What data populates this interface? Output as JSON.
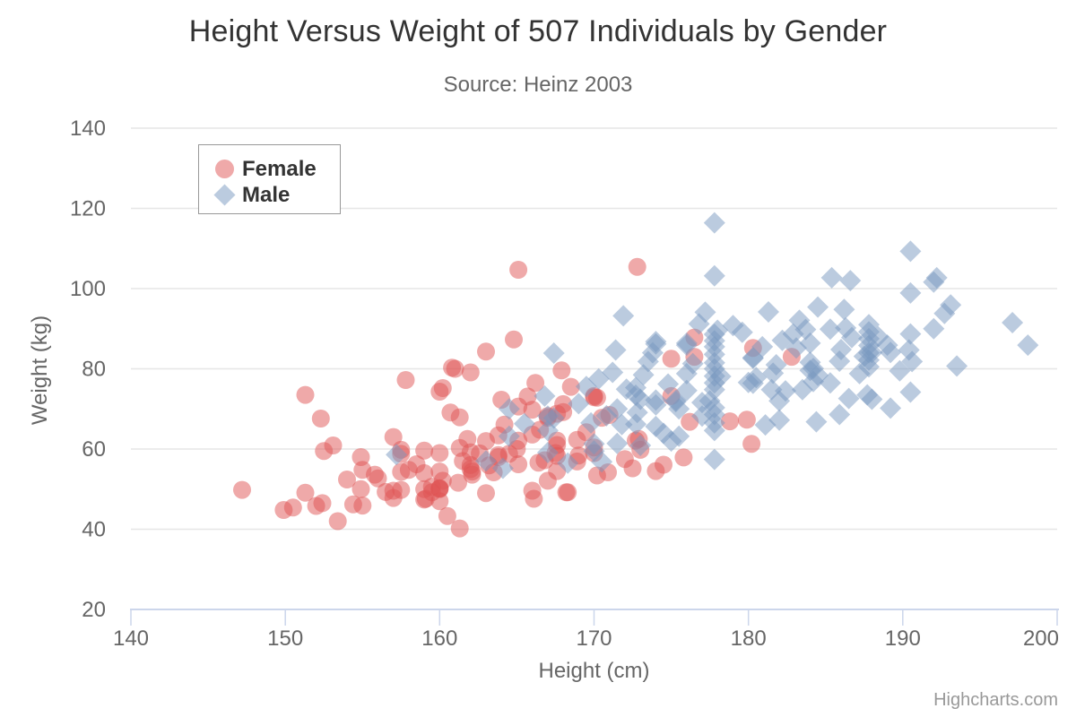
{
  "credit": "Highcharts.com",
  "colors": {
    "title": "#333333",
    "subtitle": "#666666",
    "tick_label": "#666666",
    "axis_title": "#666666",
    "grid_line": "#e6e6e6",
    "axis_line": "#ccd6eb",
    "legend_border": "#999999",
    "legend_text": "#333333",
    "credit": "#999999",
    "female": "rgba(223,83,83,0.5)",
    "male": "rgba(119,152,191,0.5)"
  },
  "chart_data": {
    "type": "scatter",
    "title": "Height Versus Weight of 507 Individuals by Gender",
    "subtitle": "Source: Heinz 2003",
    "xlabel": "Height (cm)",
    "ylabel": "Weight (kg)",
    "xlim": [
      140,
      200
    ],
    "ylim": [
      20,
      140
    ],
    "x_ticks": [
      140,
      150,
      160,
      170,
      180,
      190,
      200
    ],
    "y_ticks": [
      20,
      40,
      60,
      80,
      100,
      120,
      140
    ],
    "grid": "horizontal-only",
    "legend": {
      "position": "top-left-inside",
      "items": [
        {
          "label": "Female",
          "marker": "circle",
          "color": "rgba(223,83,83,0.5)"
        },
        {
          "label": "Male",
          "marker": "diamond",
          "color": "rgba(119,152,191,0.5)"
        }
      ]
    },
    "series": [
      {
        "name": "Female",
        "marker": "circle",
        "color": "rgba(223,83,83,0.5)",
        "data": [
          [
            161.2,
            51.6
          ],
          [
            167.5,
            59.0
          ],
          [
            159.5,
            49.2
          ],
          [
            157.0,
            63.0
          ],
          [
            155.8,
            53.6
          ],
          [
            170.0,
            59.0
          ],
          [
            159.1,
            47.6
          ],
          [
            166.0,
            69.8
          ],
          [
            176.2,
            66.8
          ],
          [
            160.2,
            75.2
          ],
          [
            172.5,
            55.2
          ],
          [
            170.9,
            54.2
          ],
          [
            172.9,
            62.5
          ],
          [
            153.4,
            42.0
          ],
          [
            160.0,
            50.0
          ],
          [
            147.2,
            49.8
          ],
          [
            168.2,
            49.2
          ],
          [
            175.0,
            73.2
          ],
          [
            157.0,
            47.8
          ],
          [
            167.6,
            68.8
          ],
          [
            159.5,
            50.6
          ],
          [
            175.0,
            82.5
          ],
          [
            166.8,
            57.2
          ],
          [
            176.5,
            87.8
          ],
          [
            170.2,
            72.8
          ],
          [
            174.0,
            54.5
          ],
          [
            173.0,
            59.8
          ],
          [
            179.9,
            67.3
          ],
          [
            170.5,
            67.8
          ],
          [
            160.0,
            47.0
          ],
          [
            154.4,
            46.2
          ],
          [
            162.0,
            55.0
          ],
          [
            176.5,
            83.0
          ],
          [
            160.0,
            54.4
          ],
          [
            152.0,
            45.8
          ],
          [
            162.1,
            53.6
          ],
          [
            170.0,
            73.2
          ],
          [
            160.2,
            52.1
          ],
          [
            161.3,
            67.9
          ],
          [
            166.4,
            56.6
          ],
          [
            168.9,
            62.3
          ],
          [
            163.8,
            58.5
          ],
          [
            167.6,
            54.5
          ],
          [
            160.0,
            50.2
          ],
          [
            161.3,
            60.3
          ],
          [
            167.6,
            58.3
          ],
          [
            165.1,
            56.2
          ],
          [
            160.0,
            50.2
          ],
          [
            170.0,
            72.9
          ],
          [
            157.5,
            59.8
          ],
          [
            167.6,
            61.0
          ],
          [
            160.7,
            69.1
          ],
          [
            163.2,
            55.9
          ],
          [
            152.4,
            46.5
          ],
          [
            157.5,
            54.3
          ],
          [
            168.3,
            49.2
          ],
          [
            180.3,
            85.2
          ],
          [
            157.5,
            49.8
          ],
          [
            155.0,
            45.9
          ],
          [
            165.1,
            70.6
          ],
          [
            165.1,
            62.1
          ],
          [
            154.9,
            58.0
          ],
          [
            162.6,
            58.9
          ],
          [
            160.0,
            59.0
          ],
          [
            168.9,
            56.9
          ],
          [
            163.8,
            63.4
          ],
          [
            167.6,
            62.1
          ],
          [
            154.9,
            50.0
          ],
          [
            161.3,
            40.2
          ],
          [
            170.2,
            53.4
          ],
          [
            149.9,
            44.8
          ],
          [
            157.5,
            58.8
          ],
          [
            163.8,
            58.0
          ],
          [
            172.7,
            62.1
          ],
          [
            155.0,
            54.8
          ],
          [
            156.5,
            49.3
          ],
          [
            164.0,
            72.3
          ],
          [
            160.0,
            74.3
          ],
          [
            163.0,
            62.0
          ],
          [
            165.7,
            73.1
          ],
          [
            161.0,
            80.0
          ],
          [
            162.0,
            79.1
          ],
          [
            166.1,
            47.6
          ],
          [
            168.0,
            69.2
          ],
          [
            166.0,
            49.6
          ],
          [
            167.0,
            68.2
          ],
          [
            156.0,
            52.7
          ],
          [
            162.1,
            54.4
          ],
          [
            159.0,
            59.6
          ],
          [
            157.0,
            49.6
          ],
          [
            158.0,
            54.8
          ],
          [
            159.0,
            50.0
          ],
          [
            162.0,
            59.2
          ],
          [
            159.0,
            47.4
          ],
          [
            163.0,
            49.0
          ],
          [
            162.0,
            56.0
          ],
          [
            169.0,
            58.4
          ],
          [
            167.0,
            67.8
          ],
          [
            159.0,
            54.0
          ],
          [
            165.0,
            60.0
          ],
          [
            170.0,
            60.4
          ],
          [
            166.0,
            63.6
          ],
          [
            168.0,
            71.2
          ],
          [
            154.0,
            52.4
          ],
          [
            167.0,
            52.1
          ],
          [
            165.1,
            104.7
          ],
          [
            172.8,
            105.4
          ],
          [
            151.3,
            73.5
          ],
          [
            157.8,
            77.2
          ],
          [
            152.3,
            67.6
          ],
          [
            151.3,
            49.1
          ],
          [
            150.5,
            45.4
          ],
          [
            152.5,
            59.5
          ],
          [
            153.1,
            60.9
          ],
          [
            160.5,
            43.3
          ],
          [
            182.8,
            83.0
          ],
          [
            180.2,
            61.3
          ],
          [
            178.8,
            66.9
          ],
          [
            161.5,
            57.0
          ],
          [
            163.5,
            54.2
          ],
          [
            164.5,
            58.8
          ],
          [
            158.5,
            56.2
          ],
          [
            161.8,
            62.5
          ],
          [
            164.2,
            66.1
          ],
          [
            166.5,
            64.8
          ],
          [
            169.5,
            64.2
          ],
          [
            171.0,
            68.5
          ],
          [
            172.0,
            57.5
          ],
          [
            174.5,
            56.1
          ],
          [
            175.8,
            57.9
          ],
          [
            168.5,
            75.5
          ],
          [
            166.2,
            76.5
          ],
          [
            163.0,
            84.3
          ],
          [
            160.8,
            80.3
          ],
          [
            164.8,
            87.3
          ],
          [
            167.9,
            79.6
          ]
        ]
      },
      {
        "name": "Male",
        "marker": "diamond",
        "color": "rgba(119,152,191,0.5)",
        "data": [
          [
            174.0,
            65.6
          ],
          [
            175.3,
            71.8
          ],
          [
            193.5,
            80.7
          ],
          [
            186.5,
            72.6
          ],
          [
            187.2,
            78.8
          ],
          [
            181.5,
            74.8
          ],
          [
            184.0,
            86.4
          ],
          [
            184.5,
            78.4
          ],
          [
            175.0,
            62.0
          ],
          [
            184.0,
            81.6
          ],
          [
            180.0,
            76.6
          ],
          [
            177.8,
            83.6
          ],
          [
            192.0,
            90.0
          ],
          [
            176.0,
            74.6
          ],
          [
            174.0,
            71.0
          ],
          [
            184.0,
            79.6
          ],
          [
            192.7,
            93.8
          ],
          [
            171.5,
            70.0
          ],
          [
            173.0,
            72.4
          ],
          [
            176.0,
            85.9
          ],
          [
            176.0,
            78.8
          ],
          [
            180.5,
            77.8
          ],
          [
            172.7,
            66.2
          ],
          [
            176.0,
            86.4
          ],
          [
            173.5,
            81.8
          ],
          [
            178.0,
            89.6
          ],
          [
            180.3,
            82.8
          ],
          [
            180.3,
            76.4
          ],
          [
            164.5,
            63.2
          ],
          [
            173.0,
            60.9
          ],
          [
            183.5,
            74.8
          ],
          [
            175.5,
            70.0
          ],
          [
            188.0,
            72.4
          ],
          [
            189.2,
            84.1
          ],
          [
            172.8,
            69.1
          ],
          [
            170.0,
            59.5
          ],
          [
            182.0,
            67.2
          ],
          [
            170.0,
            61.3
          ],
          [
            177.8,
            68.6
          ],
          [
            184.2,
            80.1
          ],
          [
            186.7,
            87.8
          ],
          [
            171.4,
            84.7
          ],
          [
            172.7,
            73.4
          ],
          [
            175.3,
            72.1
          ],
          [
            180.3,
            82.6
          ],
          [
            182.9,
            88.7
          ],
          [
            188.0,
            84.1
          ],
          [
            177.2,
            94.1
          ],
          [
            172.1,
            74.9
          ],
          [
            167.0,
            59.1
          ],
          [
            169.5,
            75.6
          ],
          [
            174.0,
            86.2
          ],
          [
            172.7,
            75.3
          ],
          [
            182.2,
            87.1
          ],
          [
            164.1,
            55.2
          ],
          [
            163.0,
            57.0
          ],
          [
            171.5,
            61.4
          ],
          [
            184.2,
            76.8
          ],
          [
            174.0,
            86.8
          ],
          [
            174.0,
            72.2
          ],
          [
            177.0,
            71.6
          ],
          [
            186.0,
            84.8
          ],
          [
            167.0,
            68.2
          ],
          [
            171.8,
            66.1
          ],
          [
            182.0,
            72.0
          ],
          [
            167.0,
            64.6
          ],
          [
            177.8,
            74.8
          ],
          [
            164.5,
            70.0
          ],
          [
            192.0,
            101.6
          ],
          [
            175.5,
            63.2
          ],
          [
            171.2,
            79.1
          ],
          [
            181.6,
            78.9
          ],
          [
            167.4,
            67.7
          ],
          [
            181.1,
            66.0
          ],
          [
            177.0,
            68.2
          ],
          [
            174.5,
            63.9
          ],
          [
            177.5,
            72.0
          ],
          [
            170.5,
            56.8
          ],
          [
            182.4,
            74.5
          ],
          [
            177.8,
            116.4
          ],
          [
            177.8,
            103.2
          ],
          [
            190.5,
            109.3
          ],
          [
            192.2,
            102.7
          ],
          [
            190.5,
            98.9
          ],
          [
            193.1,
            95.9
          ],
          [
            197.1,
            91.5
          ],
          [
            198.1,
            85.9
          ],
          [
            185.4,
            102.7
          ],
          [
            186.6,
            102.0
          ],
          [
            184.5,
            95.4
          ],
          [
            183.3,
            92.1
          ],
          [
            186.2,
            94.8
          ],
          [
            190.4,
            84.7
          ],
          [
            189.0,
            85.9
          ],
          [
            190.6,
            81.8
          ],
          [
            190.5,
            74.2
          ],
          [
            190.5,
            88.7
          ],
          [
            185.9,
            68.6
          ],
          [
            184.4,
            66.8
          ],
          [
            187.7,
            73.5
          ],
          [
            189.2,
            70.2
          ],
          [
            167.4,
            83.9
          ],
          [
            171.9,
            93.2
          ],
          [
            177.8,
            64.6
          ],
          [
            177.8,
            66.5
          ],
          [
            177.8,
            70.3
          ],
          [
            177.8,
            76.5
          ],
          [
            177.8,
            78.2
          ],
          [
            177.8,
            80.0
          ],
          [
            177.8,
            81.5
          ],
          [
            177.8,
            85.5
          ],
          [
            177.8,
            87.0
          ],
          [
            177.8,
            88.6
          ],
          [
            187.8,
            80.5
          ],
          [
            187.8,
            82.2
          ],
          [
            187.8,
            84.0
          ],
          [
            187.8,
            85.8
          ],
          [
            187.8,
            87.5
          ],
          [
            187.8,
            89.2
          ],
          [
            187.8,
            91.0
          ],
          [
            168.3,
            56.5
          ],
          [
            177.8,
            57.4
          ],
          [
            165.5,
            66.3
          ],
          [
            166.8,
            73.2
          ],
          [
            169.8,
            66.5
          ],
          [
            170.3,
            77.5
          ],
          [
            173.8,
            84.0
          ],
          [
            176.8,
            91.2
          ],
          [
            179.0,
            90.8
          ],
          [
            181.3,
            94.2
          ],
          [
            185.3,
            89.9
          ],
          [
            187.5,
            83.1
          ],
          [
            189.8,
            79.5
          ],
          [
            169.0,
            71.3
          ],
          [
            170.8,
            68.3
          ],
          [
            173.2,
            78.5
          ],
          [
            174.8,
            76.2
          ],
          [
            176.4,
            81.3
          ],
          [
            178.2,
            78.1
          ],
          [
            179.6,
            89.1
          ],
          [
            180.9,
            85.5
          ],
          [
            181.8,
            81.0
          ],
          [
            183.1,
            85.2
          ],
          [
            183.7,
            89.8
          ],
          [
            185.3,
            76.5
          ],
          [
            185.9,
            81.9
          ],
          [
            186.3,
            90.2
          ],
          [
            188.4,
            88.0
          ],
          [
            157.2,
            58.6
          ]
        ]
      }
    ]
  }
}
